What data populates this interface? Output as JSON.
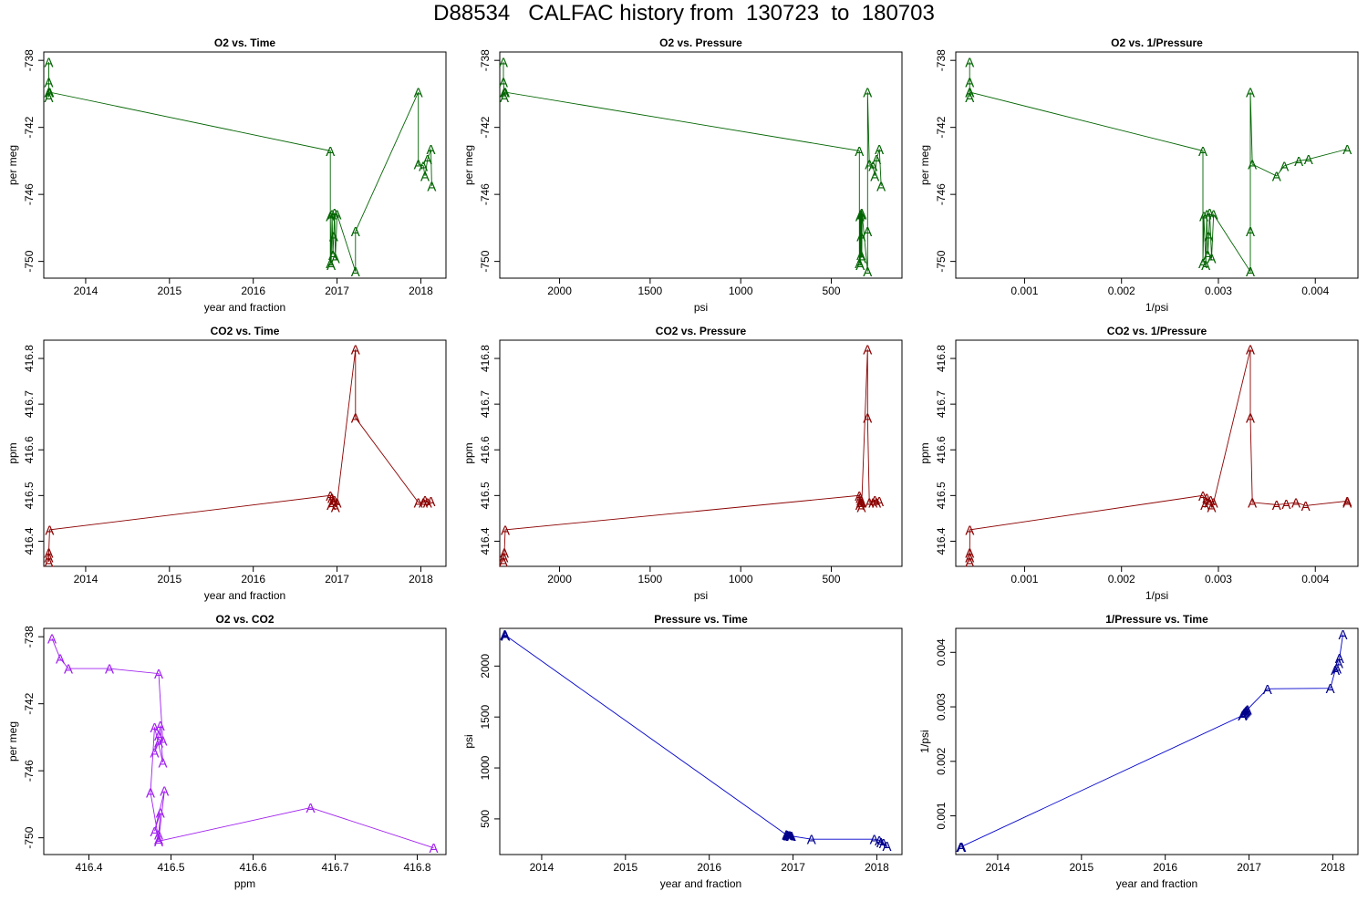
{
  "title": "D88534   CALFAC history from  130723  to  180703",
  "colors": {
    "o2": "#006400",
    "co2": "#8b0000",
    "o2co2": "#a020f0",
    "pressure": "#00008b",
    "line_blue": "#0000cd"
  },
  "chart_data": [
    {
      "type": "line",
      "title": "O2 vs. Time",
      "xlabel": "year and fraction",
      "ylabel": "per meg",
      "xlim": [
        2013.5,
        2018.3
      ],
      "ylim": [
        -751.0,
        -737.5
      ],
      "xticks": [
        2014,
        2015,
        2016,
        2017,
        2018
      ],
      "yticks": [
        -738,
        -742,
        -746,
        -750
      ],
      "marker": "A",
      "color": "#006400",
      "reverse_x": false,
      "x": [
        2013.56,
        2013.56,
        2013.56,
        2013.56,
        2013.57,
        2016.92,
        2016.92,
        2016.92,
        2016.93,
        2016.94,
        2016.95,
        2016.96,
        2016.97,
        2016.98,
        2017.0,
        2017.22,
        2017.22,
        2017.97,
        2017.97,
        2018.03,
        2018.05,
        2018.08,
        2018.12,
        2018.13
      ],
      "y": [
        -738.1,
        -739.3,
        -739.9,
        -740.2,
        -739.9,
        -743.4,
        -750.1,
        -747.3,
        -750.2,
        -747.2,
        -749.6,
        -748.5,
        -747.1,
        -749.8,
        -747.2,
        -750.6,
        -748.2,
        -739.9,
        -744.2,
        -744.3,
        -744.9,
        -743.9,
        -743.3,
        -745.5
      ]
    },
    {
      "type": "line",
      "title": "O2 vs. Pressure",
      "xlabel": "psi",
      "ylabel": "per meg",
      "xlim": [
        2330,
        110
      ],
      "ylim": [
        -751.0,
        -737.5
      ],
      "xticks": [
        2000,
        1500,
        1000,
        500
      ],
      "yticks": [
        -738,
        -742,
        -746,
        -750
      ],
      "marker": "A",
      "color": "#006400",
      "reverse_x": true,
      "x": [
        2310,
        2310,
        2305,
        2305,
        2300,
        345,
        345,
        342,
        340,
        338,
        336,
        335,
        333,
        332,
        330,
        300,
        300,
        300,
        290,
        270,
        260,
        250,
        235,
        225
      ],
      "y": [
        -738.1,
        -739.3,
        -739.9,
        -740.2,
        -739.9,
        -743.4,
        -750.1,
        -747.3,
        -750.2,
        -747.2,
        -749.6,
        -748.5,
        -747.1,
        -749.8,
        -747.2,
        -750.6,
        -748.2,
        -739.9,
        -744.2,
        -744.3,
        -744.9,
        -743.9,
        -743.3,
        -745.5
      ]
    },
    {
      "type": "line",
      "title": "O2 vs. 1/Pressure",
      "xlabel": "1/psi",
      "ylabel": "per meg",
      "xlim": [
        0.00029,
        0.00444
      ],
      "ylim": [
        -751.0,
        -737.5
      ],
      "xticks": [
        0.001,
        0.002,
        0.003,
        0.004
      ],
      "yticks": [
        -738,
        -742,
        -746,
        -750
      ],
      "marker": "A",
      "color": "#006400",
      "reverse_x": false,
      "x": [
        0.000433,
        0.000433,
        0.000434,
        0.000434,
        0.000435,
        0.00284,
        0.00284,
        0.00285,
        0.00287,
        0.00288,
        0.00289,
        0.0029,
        0.00291,
        0.00293,
        0.00295,
        0.00333,
        0.00333,
        0.00333,
        0.00335,
        0.0036,
        0.00368,
        0.00383,
        0.00393,
        0.00433
      ],
      "y": [
        -738.1,
        -739.3,
        -739.9,
        -740.2,
        -739.9,
        -743.4,
        -750.1,
        -747.3,
        -750.2,
        -747.2,
        -749.6,
        -748.5,
        -747.1,
        -749.8,
        -747.2,
        -750.6,
        -748.2,
        -739.9,
        -744.2,
        -744.9,
        -744.3,
        -744.0,
        -743.9,
        -743.3
      ]
    },
    {
      "type": "line",
      "title": "CO2 vs. Time",
      "xlabel": "year and fraction",
      "ylabel": "ppm",
      "xlim": [
        2013.5,
        2018.3
      ],
      "ylim": [
        416.345,
        416.84
      ],
      "xticks": [
        2014,
        2015,
        2016,
        2017,
        2018
      ],
      "yticks": [
        416.4,
        416.5,
        416.6,
        416.7,
        416.8
      ],
      "marker": "A",
      "color": "#8b0000",
      "reverse_x": false,
      "x": [
        2013.56,
        2013.56,
        2013.56,
        2013.57,
        2016.92,
        2016.93,
        2016.94,
        2016.95,
        2016.97,
        2016.98,
        2017.0,
        2017.22,
        2017.22,
        2017.97,
        2018.03,
        2018.05,
        2018.08,
        2018.12
      ],
      "y": [
        416.355,
        416.365,
        416.375,
        416.425,
        416.5,
        416.48,
        416.495,
        416.485,
        416.49,
        416.475,
        416.485,
        416.82,
        416.67,
        416.485,
        416.485,
        416.49,
        416.485,
        416.488
      ]
    },
    {
      "type": "line",
      "title": "CO2 vs. Pressure",
      "xlabel": "psi",
      "ylabel": "ppm",
      "xlim": [
        2330,
        110
      ],
      "ylim": [
        416.345,
        416.84
      ],
      "xticks": [
        2000,
        1500,
        1000,
        500
      ],
      "yticks": [
        416.4,
        416.5,
        416.6,
        416.7,
        416.8
      ],
      "marker": "A",
      "color": "#8b0000",
      "reverse_x": true,
      "x": [
        2310,
        2308,
        2305,
        2300,
        345,
        342,
        340,
        338,
        336,
        334,
        332,
        300,
        300,
        290,
        270,
        260,
        250,
        235
      ],
      "y": [
        416.355,
        416.365,
        416.375,
        416.425,
        416.5,
        416.48,
        416.495,
        416.485,
        416.49,
        416.475,
        416.485,
        416.82,
        416.67,
        416.485,
        416.485,
        416.49,
        416.485,
        416.488
      ]
    },
    {
      "type": "line",
      "title": "CO2 vs. 1/Pressure",
      "xlabel": "1/psi",
      "ylabel": "ppm",
      "xlim": [
        0.00029,
        0.00444
      ],
      "ylim": [
        416.345,
        416.84
      ],
      "xticks": [
        0.001,
        0.002,
        0.003,
        0.004
      ],
      "yticks": [
        416.4,
        416.5,
        416.6,
        416.7,
        416.8
      ],
      "marker": "A",
      "color": "#8b0000",
      "reverse_x": false,
      "x": [
        0.000433,
        0.000433,
        0.000434,
        0.000435,
        0.00284,
        0.00286,
        0.00288,
        0.0029,
        0.00292,
        0.00293,
        0.00295,
        0.00333,
        0.00333,
        0.00335,
        0.0036,
        0.0037,
        0.0038,
        0.0039,
        0.00433,
        0.00433
      ],
      "y": [
        416.355,
        416.365,
        416.375,
        416.425,
        416.5,
        416.48,
        416.495,
        416.485,
        416.49,
        416.475,
        416.485,
        416.82,
        416.67,
        416.485,
        416.48,
        416.482,
        416.485,
        416.478,
        416.488,
        416.485
      ]
    },
    {
      "type": "line",
      "title": "O2 vs. CO2",
      "xlabel": "ppm",
      "ylabel": "per meg",
      "xlim": [
        416.345,
        416.835
      ],
      "ylim": [
        -751.0,
        -737.5
      ],
      "xticks": [
        416.4,
        416.5,
        416.6,
        416.7,
        416.8
      ],
      "yticks": [
        -738,
        -742,
        -746,
        -750
      ],
      "marker": "A",
      "color": "#a020f0",
      "reverse_x": false,
      "x": [
        416.355,
        416.365,
        416.375,
        416.425,
        416.485,
        416.49,
        416.485,
        416.48,
        416.485,
        416.487,
        416.49,
        416.48,
        416.475,
        416.485,
        416.492,
        416.48,
        416.487,
        416.485,
        416.485,
        416.67,
        416.82
      ],
      "y": [
        -738.1,
        -739.3,
        -739.9,
        -739.9,
        -740.2,
        -744.2,
        -744.3,
        -744.9,
        -743.9,
        -743.3,
        -745.5,
        -743.4,
        -747.3,
        -750.1,
        -747.2,
        -749.6,
        -748.5,
        -749.8,
        -750.2,
        -748.2,
        -750.6
      ]
    },
    {
      "type": "line",
      "title": "Pressure vs. Time",
      "xlabel": "year and fraction",
      "ylabel": "psi",
      "xlim": [
        2013.5,
        2018.3
      ],
      "ylim": [
        150,
        2370
      ],
      "xticks": [
        2014,
        2015,
        2016,
        2017,
        2018
      ],
      "yticks": [
        500,
        1000,
        1500,
        2000
      ],
      "marker": "A",
      "color": "#00008b",
      "reverse_x": false,
      "x": [
        2013.56,
        2013.56,
        2013.57,
        2016.92,
        2016.93,
        2016.94,
        2016.95,
        2016.96,
        2016.97,
        2016.98,
        2017.22,
        2017.97,
        2018.03,
        2018.05,
        2018.08,
        2018.12
      ],
      "y": [
        2310,
        2305,
        2300,
        345,
        342,
        340,
        338,
        336,
        334,
        332,
        300,
        300,
        290,
        270,
        260,
        235
      ]
    },
    {
      "type": "line",
      "title": "1/Pressure vs. Time",
      "xlabel": "year and fraction",
      "ylabel": "1/psi",
      "xlim": [
        2013.5,
        2018.3
      ],
      "ylim": [
        0.00029,
        0.00444
      ],
      "xticks": [
        2014,
        2015,
        2016,
        2017,
        2018
      ],
      "yticks": [
        0.001,
        0.002,
        0.003,
        0.004
      ],
      "marker": "A",
      "color": "#00008b",
      "reverse_x": false,
      "x": [
        2013.56,
        2013.56,
        2013.57,
        2016.92,
        2016.93,
        2016.94,
        2016.95,
        2016.96,
        2016.97,
        2016.98,
        2017.22,
        2017.97,
        2018.03,
        2018.05,
        2018.07,
        2018.08,
        2018.12
      ],
      "y": [
        0.000433,
        0.000434,
        0.000435,
        0.00284,
        0.00286,
        0.00288,
        0.0029,
        0.00292,
        0.00293,
        0.00295,
        0.00333,
        0.00334,
        0.00368,
        0.0037,
        0.0038,
        0.0039,
        0.00433
      ]
    }
  ]
}
